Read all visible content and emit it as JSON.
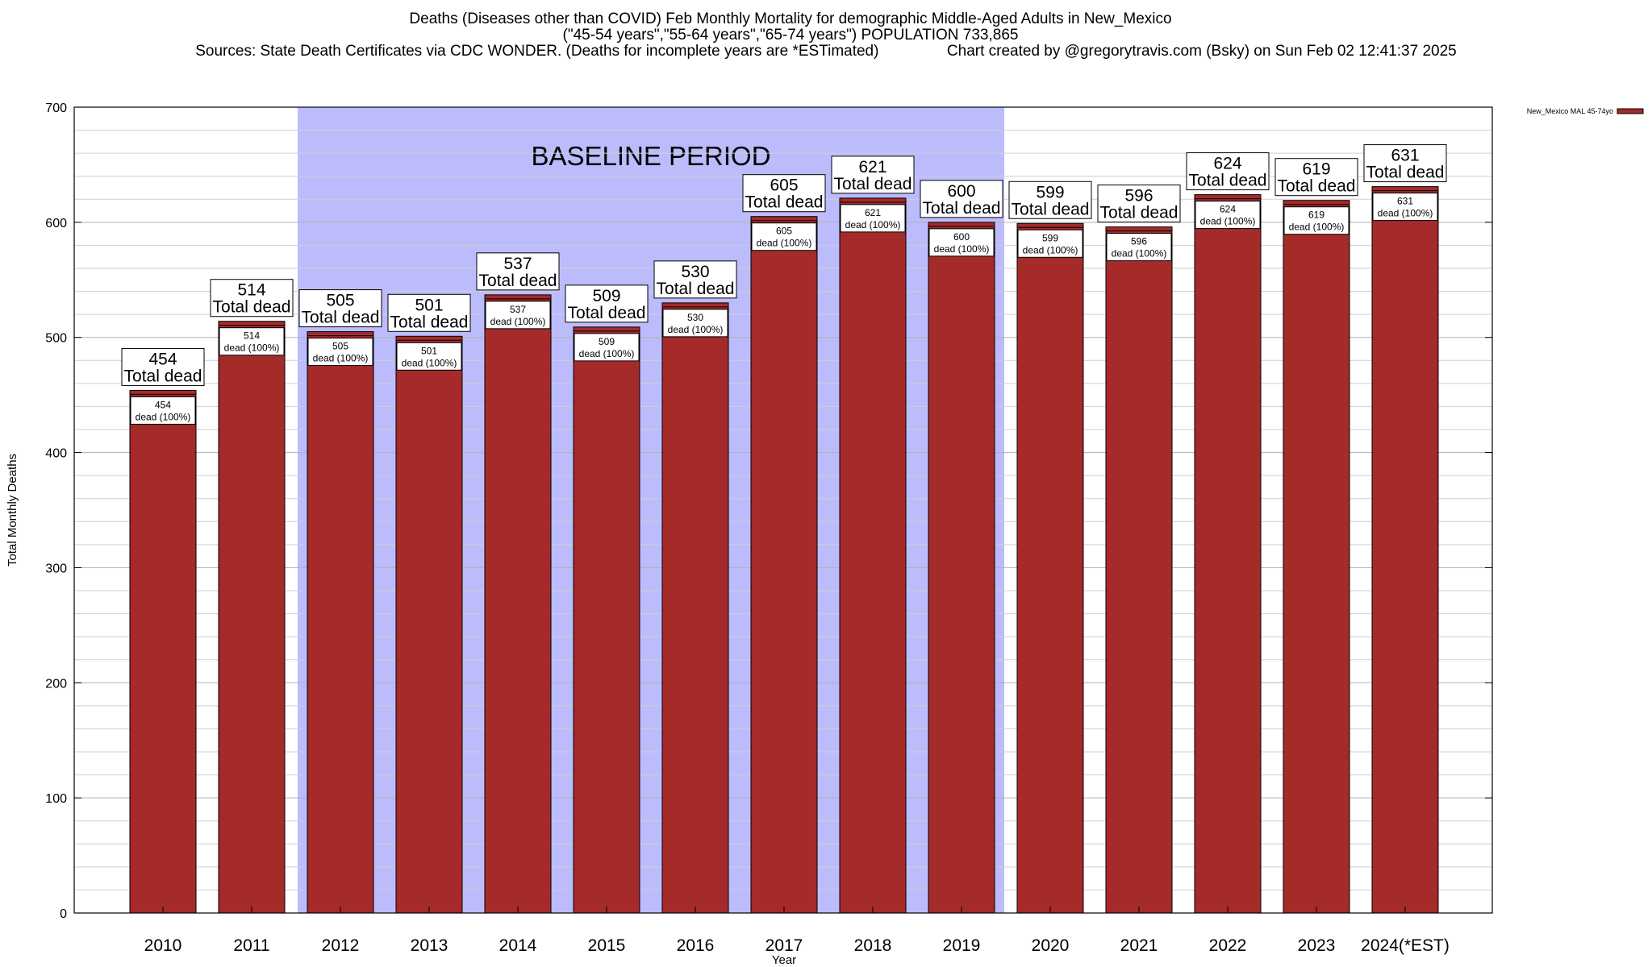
{
  "title": {
    "line1": "Deaths (Diseases other than COVID) Feb Monthly Mortality for demographic Middle-Aged Adults in New_Mexico",
    "line2": "(\"45-54 years\",\"55-64 years\",\"65-74 years\") POPULATION 733,865",
    "line3": "Sources: State Death Certificates via CDC WONDER. (Deaths for incomplete years are *ESTimated)                Chart created by @gregorytravis.com (Bsky) on Sun Feb 02 12:41:37 2025"
  },
  "chart_data": {
    "type": "bar",
    "xlabel": "Year",
    "ylabel": "Total Monthly Deaths",
    "ylim": [
      0,
      700
    ],
    "yticks": [
      0,
      100,
      200,
      300,
      400,
      500,
      600,
      700
    ],
    "grid": true,
    "legend": {
      "label": "New_Mexico MAL 45-74yo",
      "placement": "top-right",
      "color": "#a52a2a"
    },
    "categories": [
      "2010",
      "2011",
      "2012",
      "2013",
      "2014",
      "2015",
      "2016",
      "2017",
      "2018",
      "2019",
      "2020",
      "2021",
      "2022",
      "2023",
      "2024(*EST)"
    ],
    "series": [
      {
        "name": "New_Mexico MAL 45-74yo",
        "values": [
          454,
          514,
          505,
          501,
          537,
          509,
          530,
          605,
          621,
          600,
          599,
          596,
          624,
          619,
          631
        ]
      }
    ],
    "top_caption": "Total dead",
    "inner_caption": "dead (100%)",
    "baseline": {
      "label": "BASELINE PERIOD",
      "from": "2012",
      "to": "2019",
      "color": "#bcbcfc"
    },
    "bar_color": "#a52a2a"
  }
}
